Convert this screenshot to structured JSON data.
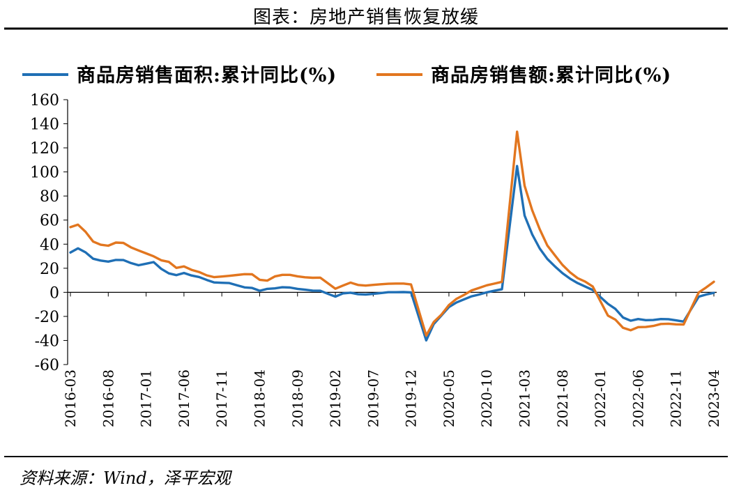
{
  "header": {
    "title": "图表：房地产销售恢复放缓"
  },
  "footer": {
    "source": "资料来源：Wind，泽平宏观"
  },
  "colors": {
    "series1": "#1f6fb5",
    "series2": "#e2761f",
    "axis": "#000000"
  },
  "chart_data": {
    "type": "line",
    "title": "图表：房地产销售恢复放缓",
    "xlabel": "",
    "ylabel": "",
    "ylim": [
      -60,
      160
    ],
    "ytick_step": 20,
    "grid": false,
    "legend": "top",
    "xtick_labels": [
      "2016-03",
      "2016-08",
      "2017-01",
      "2017-06",
      "2017-11",
      "2018-04",
      "2018-09",
      "2019-02",
      "2019-07",
      "2019-12",
      "2020-05",
      "2020-10",
      "2021-03",
      "2021-08",
      "2022-01",
      "2022-06",
      "2022-11",
      "2023-04"
    ],
    "x": [
      "2016-03",
      "2016-04",
      "2016-05",
      "2016-06",
      "2016-07",
      "2016-08",
      "2016-09",
      "2016-10",
      "2016-11",
      "2016-12",
      "2017-02",
      "2017-03",
      "2017-04",
      "2017-05",
      "2017-06",
      "2017-07",
      "2017-08",
      "2017-09",
      "2017-10",
      "2017-11",
      "2017-12",
      "2018-02",
      "2018-03",
      "2018-04",
      "2018-05",
      "2018-06",
      "2018-07",
      "2018-08",
      "2018-09",
      "2018-10",
      "2018-11",
      "2018-12",
      "2019-02",
      "2019-03",
      "2019-04",
      "2019-05",
      "2019-06",
      "2019-07",
      "2019-08",
      "2019-09",
      "2019-10",
      "2019-11",
      "2019-12",
      "2020-02",
      "2020-03",
      "2020-04",
      "2020-05",
      "2020-06",
      "2020-07",
      "2020-08",
      "2020-09",
      "2020-10",
      "2020-11",
      "2020-12",
      "2021-02",
      "2021-03",
      "2021-04",
      "2021-05",
      "2021-06",
      "2021-07",
      "2021-08",
      "2021-09",
      "2021-10",
      "2021-11",
      "2021-12",
      "2022-02",
      "2022-03",
      "2022-04",
      "2022-05",
      "2022-06",
      "2022-07",
      "2022-08",
      "2022-09",
      "2022-10",
      "2022-11",
      "2022-12",
      "2023-02",
      "2023-03",
      "2023-04"
    ],
    "series": [
      {
        "name": "商品房销售面积:累计同比(%)",
        "values": [
          33.1,
          36.5,
          33.2,
          27.9,
          26.4,
          25.5,
          26.9,
          26.8,
          24.3,
          22.5,
          25.1,
          19.5,
          15.7,
          14.3,
          16.1,
          14.0,
          12.7,
          10.3,
          8.2,
          7.9,
          7.7,
          4.1,
          3.6,
          1.3,
          2.9,
          3.3,
          4.2,
          4.0,
          2.9,
          2.2,
          1.4,
          1.3,
          -3.6,
          -0.9,
          -0.3,
          -1.6,
          -1.8,
          -1.3,
          -0.6,
          0.1,
          0.1,
          0.2,
          -0.1,
          -39.9,
          -26.3,
          -19.3,
          -12.3,
          -8.4,
          -5.8,
          -3.3,
          -1.8,
          0.0,
          1.3,
          2.6,
          104.9,
          63.8,
          48.1,
          36.4,
          27.7,
          21.5,
          15.9,
          11.3,
          7.7,
          4.8,
          1.9,
          -9.6,
          -13.8,
          -20.9,
          -23.6,
          -22.2,
          -23.1,
          -23.0,
          -22.2,
          -22.3,
          -23.3,
          -24.3,
          -3.6,
          -1.8,
          -0.4
        ]
      },
      {
        "name": "商品房销售额:累计同比(%)",
        "values": [
          54.1,
          56.2,
          50.3,
          42.1,
          39.5,
          38.7,
          41.3,
          41.0,
          37.3,
          34.8,
          29.9,
          26.6,
          25.3,
          20.3,
          21.5,
          18.7,
          16.9,
          14.1,
          12.6,
          13.1,
          13.7,
          15.1,
          15.0,
          10.4,
          9.7,
          13.2,
          14.5,
          14.5,
          13.3,
          12.5,
          12.1,
          12.2,
          3.0,
          5.6,
          8.1,
          6.1,
          5.6,
          6.2,
          6.7,
          7.1,
          7.3,
          7.3,
          6.5,
          -35.9,
          -24.7,
          -18.6,
          -10.6,
          -5.4,
          -2.1,
          1.6,
          3.7,
          5.8,
          7.2,
          8.7,
          133.4,
          88.5,
          68.2,
          52.4,
          38.9,
          30.7,
          22.8,
          16.6,
          11.8,
          8.9,
          4.8,
          -19.3,
          -22.7,
          -29.5,
          -31.5,
          -28.9,
          -28.8,
          -27.9,
          -26.3,
          -26.1,
          -26.6,
          -26.7,
          -0.1,
          4.1,
          8.8
        ]
      }
    ]
  }
}
